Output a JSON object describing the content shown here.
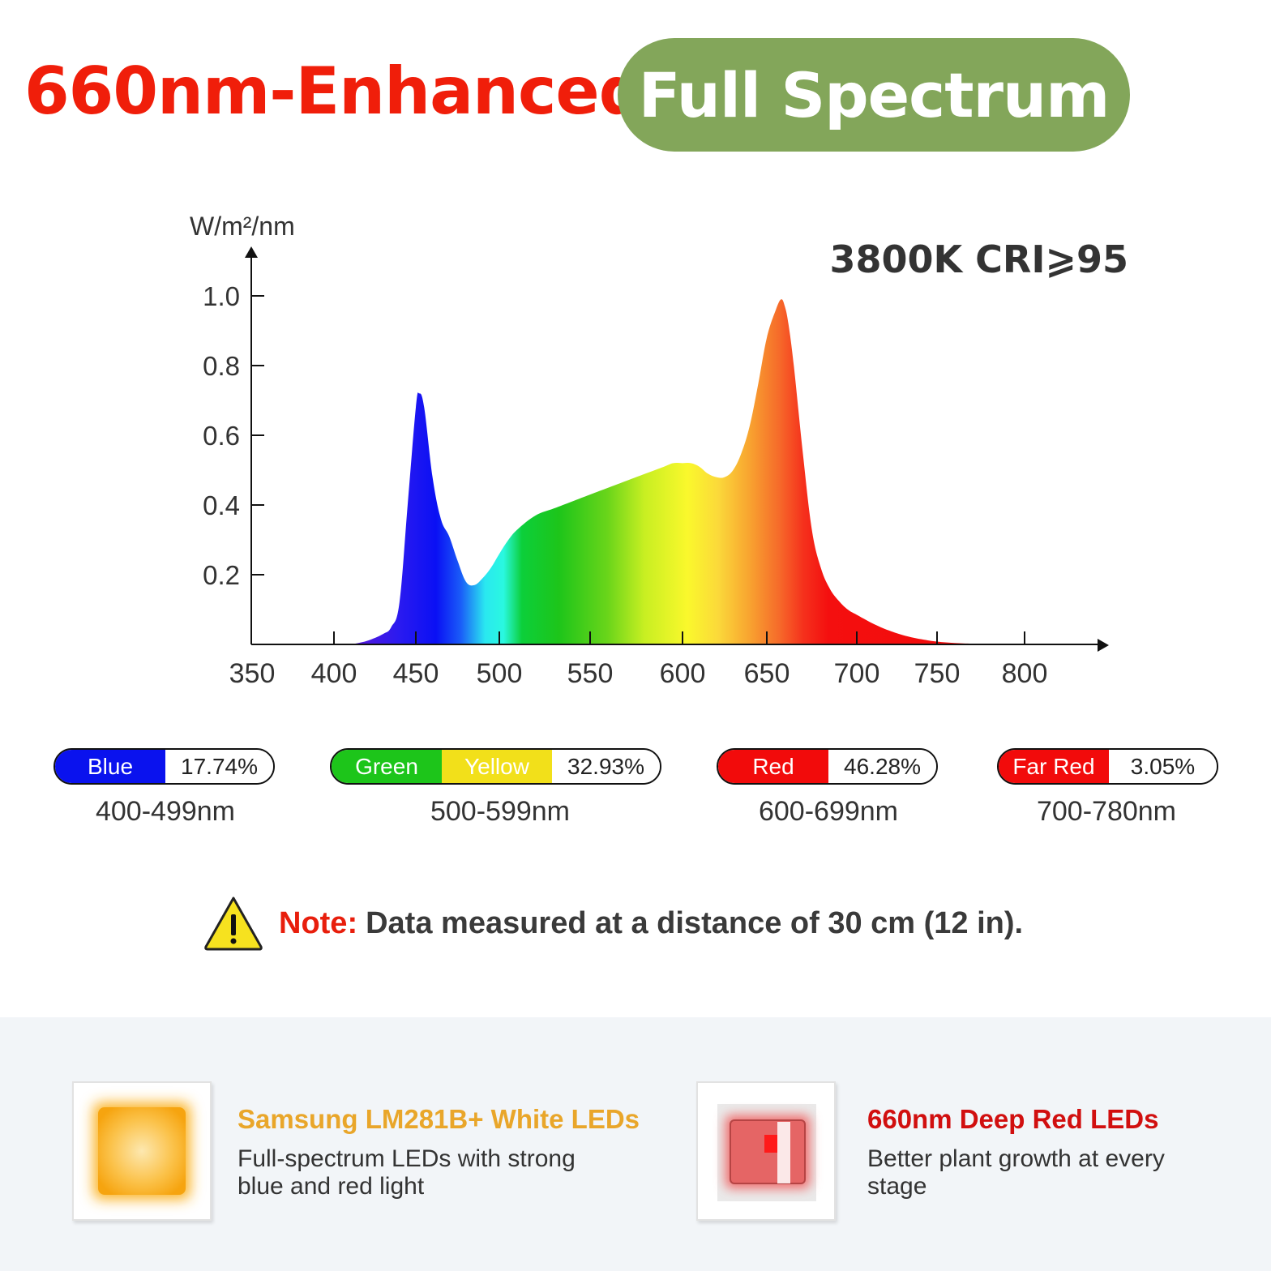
{
  "headline": {
    "left": "660nm-Enhanced",
    "right": "Full Spectrum"
  },
  "colors": {
    "headline_red": "#f01e0a",
    "pill_green": "#83a65a",
    "blue": "#0a12ee",
    "green": "#1dc51a",
    "yellow": "#f2e01a",
    "red": "#f20b0b",
    "feature1_title": "#e9a62a",
    "feature2_title": "#d10f0f",
    "footer_bg": "#f2f5f8"
  },
  "chart_data": {
    "type": "area",
    "title": "3800K CRI⩾95",
    "ylabel": "W/m²/nm",
    "xlabel": "",
    "xlim": [
      350,
      850
    ],
    "ylim": [
      0,
      1.0
    ],
    "x_ticks": [
      350,
      400,
      450,
      500,
      550,
      600,
      650,
      700,
      750,
      800
    ],
    "y_ticks": [
      "0.2",
      "0.4",
      "0.6",
      "0.8",
      "1.0"
    ],
    "grid": false,
    "legend": "none",
    "series": [
      {
        "x": [
          410,
          420,
          430,
          435,
          440,
          445,
          450,
          452,
          455,
          460,
          465,
          470,
          475,
          480,
          485,
          490,
          495,
          500,
          505,
          510,
          520,
          530,
          540,
          550,
          560,
          570,
          580,
          590,
          595,
          600,
          605,
          610,
          615,
          620,
          625,
          630,
          635,
          640,
          645,
          650,
          655,
          658,
          660,
          662,
          665,
          670,
          675,
          680,
          685,
          690,
          695,
          700,
          710,
          720,
          730,
          740,
          750,
          760,
          770,
          780
        ],
        "values": [
          0.0,
          0.01,
          0.03,
          0.05,
          0.12,
          0.4,
          0.68,
          0.72,
          0.68,
          0.48,
          0.36,
          0.31,
          0.24,
          0.18,
          0.17,
          0.19,
          0.22,
          0.26,
          0.3,
          0.33,
          0.37,
          0.39,
          0.41,
          0.43,
          0.45,
          0.47,
          0.49,
          0.51,
          0.52,
          0.52,
          0.52,
          0.51,
          0.49,
          0.48,
          0.48,
          0.5,
          0.55,
          0.63,
          0.75,
          0.88,
          0.96,
          0.99,
          0.97,
          0.92,
          0.8,
          0.55,
          0.33,
          0.22,
          0.16,
          0.125,
          0.1,
          0.085,
          0.06,
          0.04,
          0.025,
          0.015,
          0.008,
          0.004,
          0.002,
          0.0
        ]
      }
    ]
  },
  "bands": [
    {
      "segments": [
        {
          "label": "Blue",
          "color": "#0a12ee",
          "text_color": "#ffffff"
        }
      ],
      "percent": "17.74%",
      "range": "400-499nm"
    },
    {
      "segments": [
        {
          "label": "Green",
          "color": "#1dc51a",
          "text_color": "#ffffff"
        },
        {
          "label": "Yellow",
          "color": "#f2e01a",
          "text_color": "#ffffff"
        }
      ],
      "percent": "32.93%",
      "range": "500-599nm"
    },
    {
      "segments": [
        {
          "label": "Red",
          "color": "#f20b0b",
          "text_color": "#ffffff"
        }
      ],
      "percent": "46.28%",
      "range": "600-699nm"
    },
    {
      "segments": [
        {
          "label": "Far Red",
          "color": "#f20b0b",
          "text_color": "#ffffff"
        }
      ],
      "percent": "3.05%",
      "range": "700-780nm"
    }
  ],
  "note": {
    "icon": "warning-icon",
    "label": "Note:",
    "text": "Data measured at a distance of 30 cm (12 in)."
  },
  "features": [
    {
      "icon": "white-led-icon",
      "title": "Samsung LM281B+ White LEDs",
      "description": "Full-spectrum LEDs with strong blue and red light"
    },
    {
      "icon": "deep-red-led-icon",
      "title": "660nm Deep Red LEDs",
      "description": "Better plant growth at every stage"
    }
  ]
}
